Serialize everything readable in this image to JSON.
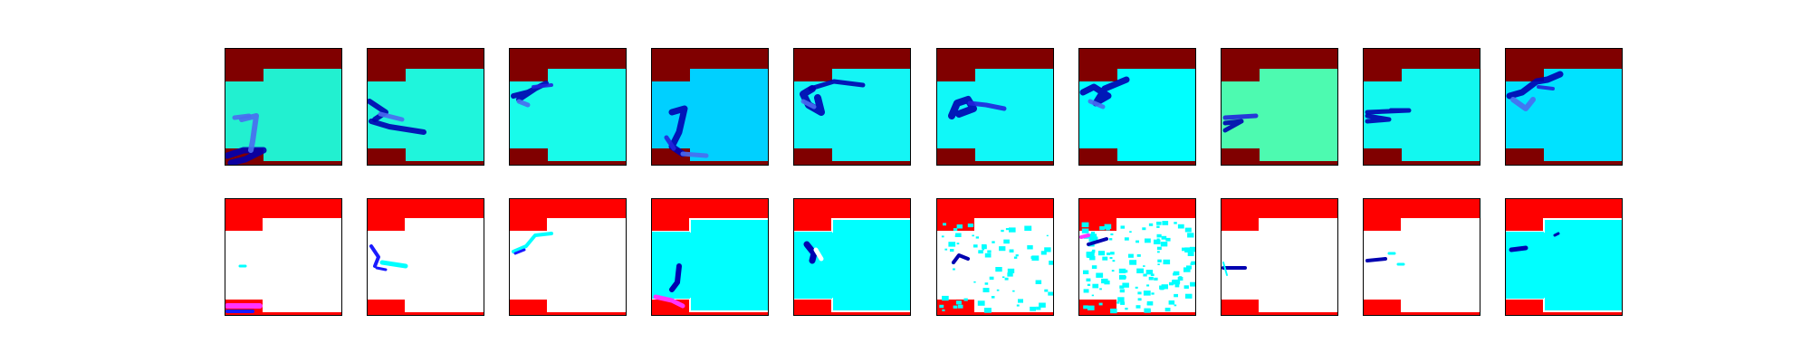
{
  "figure": {
    "rows": 2,
    "columns": 10
  },
  "colors": {
    "wall_top": "#800000",
    "wall_bottom": "#ff0000",
    "empty": "#ffffff",
    "flow_dark": "#0000b0",
    "flow_mid": "#2222dd",
    "flow_light": "#4a6cf0",
    "error_cyan": "#00ffff",
    "error_blue": "#1a1aff",
    "error_magenta": "#ff33ff",
    "panel_border": "#000000"
  },
  "top_row": [
    {
      "field_color": "#22f0d0",
      "strokes": "bottom"
    },
    {
      "field_color": "#1ff5dc",
      "strokes": "leftmid"
    },
    {
      "field_color": "#18fbea",
      "strokes": "upper"
    },
    {
      "field_color": "#00d0ff",
      "strokes": "vertical"
    },
    {
      "field_color": "#14f5f5",
      "strokes": "loop"
    },
    {
      "field_color": "#10f8f8",
      "strokes": "hook"
    },
    {
      "field_color": "#00ffff",
      "strokes": "zig"
    },
    {
      "field_color": "#4dfab0",
      "strokes": "arrow"
    },
    {
      "field_color": "#12f8f0",
      "strokes": "bar"
    },
    {
      "field_color": "#00e2ff",
      "strokes": "swirl"
    }
  ],
  "bottom_row": [
    {
      "field_color": "#ffffff",
      "pattern": "bottom"
    },
    {
      "field_color": "#ffffff",
      "pattern": "leftmid"
    },
    {
      "field_color": "#ffffff",
      "pattern": "upper"
    },
    {
      "field_color": "#00ffff",
      "pattern": "vertical"
    },
    {
      "field_color": "#00ffff",
      "pattern": "loop"
    },
    {
      "field_color": "#ffffff",
      "pattern": "speckle"
    },
    {
      "field_color": "#ffffff",
      "pattern": "speckle_dense"
    },
    {
      "field_color": "#ffffff",
      "pattern": "arrow"
    },
    {
      "field_color": "#ffffff",
      "pattern": "bar"
    },
    {
      "field_color": "#00ffff",
      "pattern": "swirl"
    }
  ]
}
